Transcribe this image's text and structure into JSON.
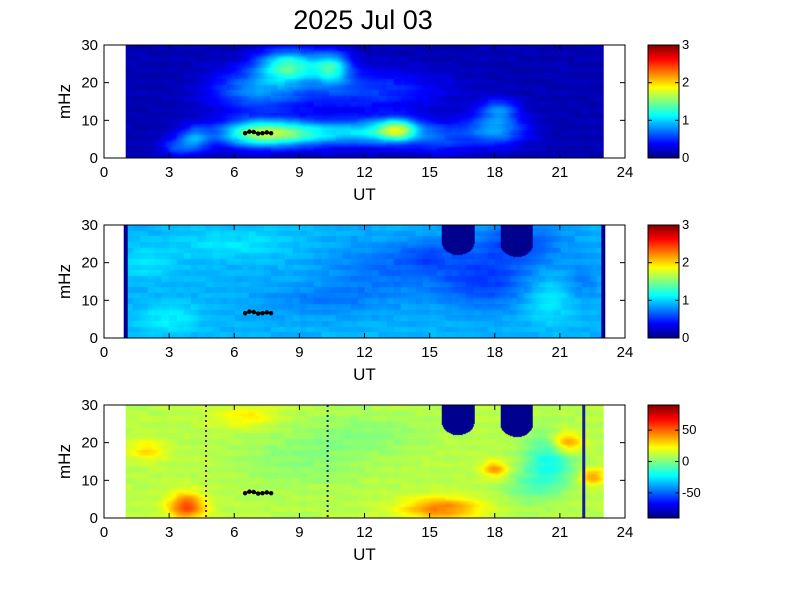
{
  "title": "2025 Jul 03",
  "chart_data": [
    {
      "type": "heatmap",
      "xlabel": "UT",
      "ylabel": "mHz",
      "xlim": [
        0,
        24
      ],
      "ylim": [
        0,
        30
      ],
      "xticks": [
        "0",
        "3",
        "6",
        "9",
        "12",
        "15",
        "18",
        "21",
        "24"
      ],
      "yticks": [
        "0",
        "10",
        "20",
        "30"
      ],
      "data_x_range": [
        1,
        23
      ],
      "colorbar": {
        "range": [
          0,
          3
        ],
        "ticks": [
          "0",
          "1",
          "2",
          "3"
        ]
      },
      "background_value": 0.15,
      "blobs": [
        {
          "x": 7.0,
          "y": 6.5,
          "sx": 1.3,
          "sy": 2.5,
          "v": 1.0
        },
        {
          "x": 9.0,
          "y": 6.5,
          "sx": 1.8,
          "sy": 2.5,
          "v": 0.9
        },
        {
          "x": 12.8,
          "y": 7.0,
          "sx": 1.5,
          "sy": 2.5,
          "v": 0.8
        },
        {
          "x": 13.5,
          "y": 7.5,
          "sx": 0.6,
          "sy": 2.0,
          "v": 0.9
        },
        {
          "x": 8.5,
          "y": 24.5,
          "sx": 1.0,
          "sy": 3.0,
          "v": 1.1
        },
        {
          "x": 10.5,
          "y": 24.0,
          "sx": 0.6,
          "sy": 3.0,
          "v": 0.9
        },
        {
          "x": 7.0,
          "y": 18.0,
          "sx": 1.5,
          "sy": 4.0,
          "v": 0.6
        },
        {
          "x": 4.2,
          "y": 5.0,
          "sx": 0.5,
          "sy": 2.5,
          "v": 0.6
        },
        {
          "x": 18.0,
          "y": 7.5,
          "sx": 1.0,
          "sy": 3.0,
          "v": 0.7
        },
        {
          "x": 18.2,
          "y": 13.0,
          "sx": 0.6,
          "sy": 2.0,
          "v": 0.5
        },
        {
          "x": 3.3,
          "y": 3.0,
          "sx": 0.5,
          "sy": 2.0,
          "v": 0.4
        },
        {
          "x": 12.0,
          "y": 18.0,
          "sx": 2.5,
          "sy": 4.0,
          "v": 0.4
        },
        {
          "x": 15.5,
          "y": 5.0,
          "sx": 1.0,
          "sy": 3.0,
          "v": 0.35
        }
      ],
      "masks": [],
      "vlines": [],
      "marker_track": {
        "x": [
          6.5,
          6.7,
          6.9,
          7.1,
          7.3,
          7.5,
          7.7
        ],
        "y": [
          6.6,
          7.0,
          6.9,
          6.5,
          6.6,
          6.8,
          6.6
        ]
      }
    },
    {
      "type": "heatmap",
      "xlabel": "UT",
      "ylabel": "mHz",
      "xlim": [
        0,
        24
      ],
      "ylim": [
        0,
        30
      ],
      "xticks": [
        "0",
        "3",
        "6",
        "9",
        "12",
        "15",
        "18",
        "21",
        "24"
      ],
      "yticks": [
        "0",
        "10",
        "20",
        "30"
      ],
      "data_x_range": [
        1,
        23
      ],
      "colorbar": {
        "range": [
          0,
          3
        ],
        "ticks": [
          "0",
          "1",
          "2",
          "3"
        ]
      },
      "background_value": 0.9,
      "blobs": [
        {
          "x": 17.5,
          "y": 15.0,
          "sx": 1.5,
          "sy": 5.0,
          "v": -0.35
        },
        {
          "x": 19.0,
          "y": 25.0,
          "sx": 1.5,
          "sy": 4.0,
          "v": -0.3
        },
        {
          "x": 13.0,
          "y": 18.0,
          "sx": 2.0,
          "sy": 5.0,
          "v": -0.2
        },
        {
          "x": 10.0,
          "y": 10.0,
          "sx": 2.0,
          "sy": 3.0,
          "v": -0.15
        },
        {
          "x": 3.0,
          "y": 5.0,
          "sx": 1.0,
          "sy": 3.0,
          "v": 0.2
        },
        {
          "x": 6.0,
          "y": 25.0,
          "sx": 2.0,
          "sy": 3.0,
          "v": 0.15
        },
        {
          "x": 20.5,
          "y": 10.0,
          "sx": 0.8,
          "sy": 4.0,
          "v": 0.2
        },
        {
          "x": 15.0,
          "y": 22.0,
          "sx": 1.0,
          "sy": 3.0,
          "v": -0.2
        },
        {
          "x": 2.0,
          "y": 20.0,
          "sx": 1.0,
          "sy": 3.0,
          "v": 0.15
        },
        {
          "x": 22.0,
          "y": 15.0,
          "sx": 0.6,
          "sy": 4.0,
          "v": -0.15
        }
      ],
      "masks": [
        {
          "x": 16.3,
          "y_top": 30,
          "y_bottom": 22.0,
          "halfwidth": 0.75
        },
        {
          "x": 19.0,
          "y_top": 30,
          "y_bottom": 21.5,
          "halfwidth": 0.75
        }
      ],
      "edge_bars": [
        1.0,
        23.0
      ],
      "vlines": [],
      "marker_track": {
        "x": [
          6.5,
          6.7,
          6.9,
          7.1,
          7.3,
          7.5,
          7.7
        ],
        "y": [
          6.6,
          7.0,
          6.9,
          6.5,
          6.6,
          6.8,
          6.6
        ]
      }
    },
    {
      "type": "heatmap",
      "xlabel": "UT",
      "ylabel": "mHz",
      "xlim": [
        0,
        24
      ],
      "ylim": [
        0,
        30
      ],
      "xticks": [
        "0",
        "3",
        "6",
        "9",
        "12",
        "15",
        "18",
        "21",
        "24"
      ],
      "yticks": [
        "0",
        "10",
        "20",
        "30"
      ],
      "data_x_range": [
        1,
        23
      ],
      "colorbar": {
        "range": [
          -90,
          90
        ],
        "ticks": [
          "50",
          "0",
          "-50"
        ],
        "tick_values": [
          50,
          0,
          -50
        ]
      },
      "background_value": 10,
      "blobs": [
        {
          "x": 3.8,
          "y": 3.0,
          "sx": 0.6,
          "sy": 2.5,
          "v": 45
        },
        {
          "x": 15.5,
          "y": 2.5,
          "sx": 1.3,
          "sy": 2.2,
          "v": 35
        },
        {
          "x": 18.0,
          "y": 13.0,
          "sx": 0.4,
          "sy": 1.5,
          "v": 30
        },
        {
          "x": 21.3,
          "y": 20.0,
          "sx": 0.5,
          "sy": 2.0,
          "v": 35
        },
        {
          "x": 22.5,
          "y": 11.0,
          "sx": 0.4,
          "sy": 1.5,
          "v": 30
        },
        {
          "x": 9.0,
          "y": 15.0,
          "sx": 2.0,
          "sy": 5.0,
          "v": -8
        },
        {
          "x": 12.0,
          "y": 22.0,
          "sx": 2.0,
          "sy": 4.0,
          "v": -8
        },
        {
          "x": 20.5,
          "y": 15.0,
          "sx": 0.8,
          "sy": 5.0,
          "v": -30
        },
        {
          "x": 2.0,
          "y": 18.0,
          "sx": 0.6,
          "sy": 2.0,
          "v": 18
        },
        {
          "x": 6.5,
          "y": 27.0,
          "sx": 1.0,
          "sy": 2.0,
          "v": 15
        },
        {
          "x": 19.5,
          "y": 8.0,
          "sx": 0.8,
          "sy": 3.0,
          "v": -12
        }
      ],
      "masks": [
        {
          "x": 16.3,
          "y_top": 30,
          "y_bottom": 22.0,
          "halfwidth": 0.75
        },
        {
          "x": 19.0,
          "y_top": 30,
          "y_bottom": 21.5,
          "halfwidth": 0.75
        }
      ],
      "vlines": [
        {
          "x": 4.7,
          "style": "dotted",
          "color": "#7a1a1a"
        },
        {
          "x": 10.3,
          "style": "dotted",
          "color": "#1a1a7a"
        },
        {
          "x": 22.1,
          "style": "solid",
          "color": "#1a1a9a"
        }
      ],
      "marker_track": {
        "x": [
          6.5,
          6.7,
          6.9,
          7.1,
          7.3,
          7.5,
          7.7
        ],
        "y": [
          6.6,
          7.0,
          6.9,
          6.5,
          6.6,
          6.8,
          6.6
        ]
      }
    }
  ]
}
